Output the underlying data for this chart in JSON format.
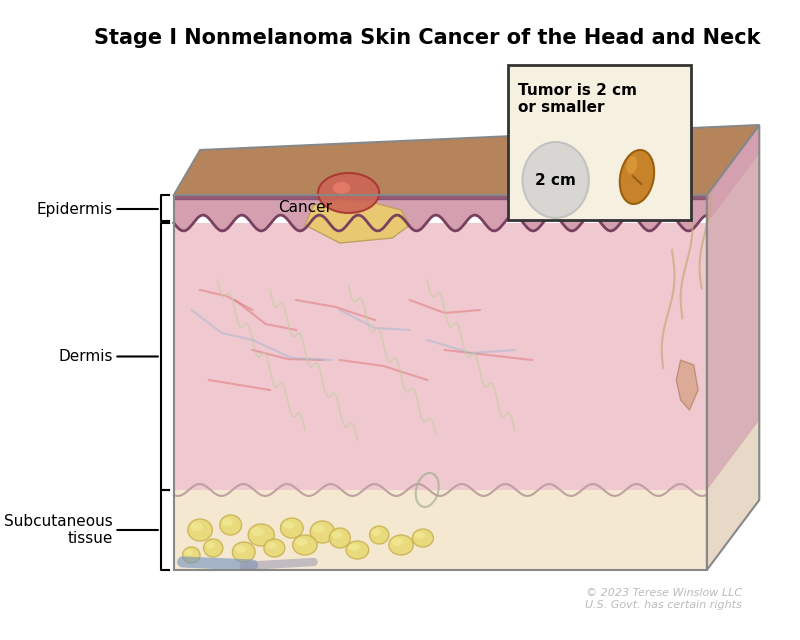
{
  "title": "Stage I Nonmelanoma Skin Cancer of the Head and Neck",
  "title_fontsize": 15,
  "title_fontweight": "bold",
  "background_color": "#ffffff",
  "copyright_text": "© 2023 Terese Winslow LLC\nU.S. Govt. has certain rights",
  "copyright_color": "#bbbbbb",
  "copyright_fontsize": 8,
  "labels": {
    "cancer": "Cancer",
    "epidermis": "Epidermis",
    "dermis": "Dermis",
    "subcutaneous": "Subcutaneous\ntissue"
  },
  "label_fontsize": 11,
  "inset_title": "Tumor is 2 cm\nor smaller",
  "inset_label": "2 cm",
  "inset_bg": "#f5f0e0",
  "inset_border": "#333333",
  "skin_top_color": "#b5845a",
  "skin_top_dark": "#8B6040",
  "epidermis_color": "#d4a0b0",
  "epidermis_border": "#7a4060",
  "dermis_color": "#f0c8d0",
  "dermis_border": "#c09090",
  "subcut_color": "#f0e8d0",
  "fat_color": "#e8d870",
  "fat_highlight": "#f5f0a0",
  "cancer_color": "#cc6655",
  "cancer_highlight": "#ff8877",
  "tumor_yellow": "#e8c870",
  "peanut_color": "#c8832a",
  "circle_color": "#d0d0d0",
  "hair_color": "#c8a878",
  "vessel_red": "#e08080",
  "vessel_blue": "#a0b8d0",
  "nerve_color": "#c0d0a0"
}
